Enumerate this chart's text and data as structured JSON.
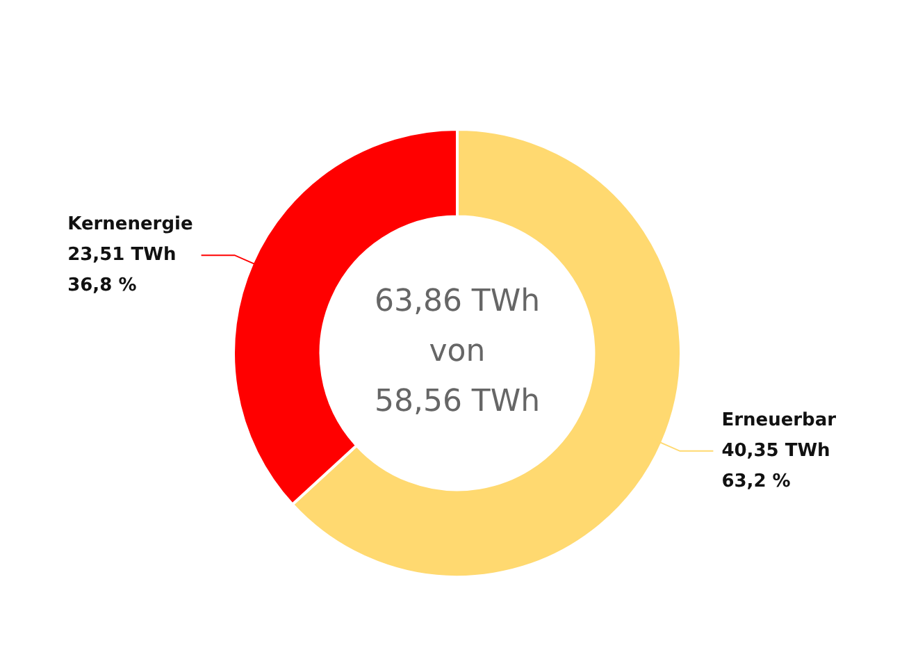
{
  "chart_data": {
    "type": "donut",
    "categories": [
      "Erneuerbar",
      "Kernenergie"
    ],
    "values": [
      40.35,
      23.51
    ],
    "colors": [
      "#ffd970",
      "#ff0000"
    ],
    "value_labels": [
      "40,35 TWh\n63,2 %",
      "23,51 TWh\n36,8 %"
    ],
    "annotations": [
      "63,86 TWh",
      "von",
      "58,56 TWh"
    ],
    "legend": false
  }
}
